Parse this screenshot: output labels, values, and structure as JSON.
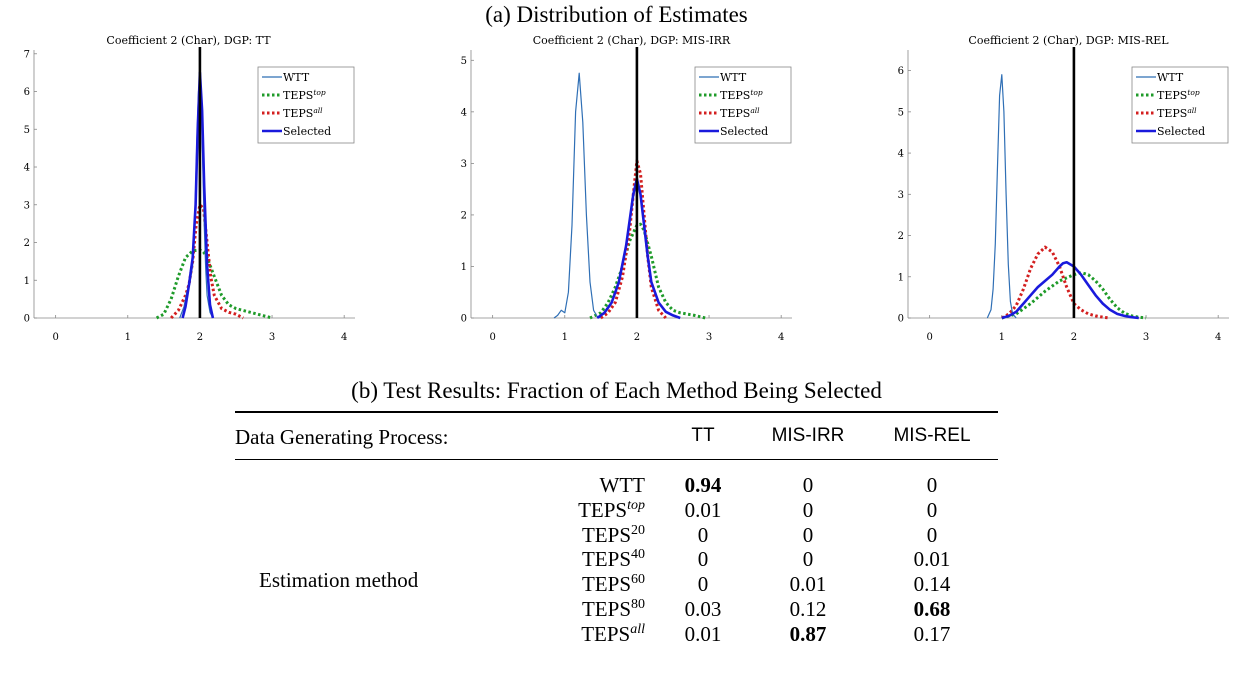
{
  "panel_a_title": "(a) Distribution of Estimates",
  "panel_b_title": "(b) Test Results: Fraction of Each Method Being Selected",
  "chart_data": [
    {
      "type": "line",
      "title": "Coefficient 2 (Char), DGP: TT",
      "xlim": [
        -0.3,
        4.15
      ],
      "ylim": [
        0,
        7.1
      ],
      "xticks": [
        0,
        1,
        2,
        3,
        4
      ],
      "yticks": [
        0,
        1,
        2,
        3,
        4,
        5,
        6,
        7
      ],
      "vline": 2,
      "legend_position": "top-right",
      "series": [
        {
          "name": "WTT",
          "color": "#2f6fb5",
          "style": "solid",
          "x": [
            1.72,
            1.78,
            1.82,
            1.86,
            1.9,
            1.93,
            1.96,
            1.98,
            2.0,
            2.02,
            2.04,
            2.06,
            2.08,
            2.1,
            2.14,
            2.18
          ],
          "y": [
            0,
            0.3,
            0.7,
            0.9,
            1.4,
            2.7,
            4.8,
            6.0,
            6.3,
            5.6,
            4.0,
            2.5,
            1.3,
            0.6,
            0.15,
            0
          ]
        },
        {
          "name": "TEPS^top",
          "color": "#1f9b2a",
          "style": "dotted",
          "x": [
            1.4,
            1.5,
            1.6,
            1.7,
            1.8,
            1.9,
            2.0,
            2.05,
            2.1,
            2.2,
            2.3,
            2.4,
            2.5,
            2.6,
            2.7,
            2.8,
            2.9,
            3.0
          ],
          "y": [
            0,
            0.1,
            0.5,
            1.1,
            1.6,
            1.78,
            1.8,
            1.75,
            1.6,
            1.1,
            0.6,
            0.35,
            0.25,
            0.2,
            0.15,
            0.1,
            0.05,
            0
          ]
        },
        {
          "name": "TEPS^all",
          "color": "#d31f1f",
          "style": "dotted",
          "x": [
            1.6,
            1.7,
            1.8,
            1.85,
            1.9,
            1.95,
            2.0,
            2.05,
            2.1,
            2.15,
            2.2,
            2.3,
            2.4,
            2.5,
            2.6
          ],
          "y": [
            0,
            0.2,
            0.6,
            0.9,
            1.5,
            2.5,
            3.0,
            2.9,
            2.0,
            1.1,
            0.6,
            0.25,
            0.15,
            0.1,
            0
          ]
        },
        {
          "name": "Selected",
          "color": "#1a1adc",
          "style": "solid",
          "x": [
            1.76,
            1.8,
            1.85,
            1.9,
            1.94,
            1.97,
            2.0,
            2.03,
            2.06,
            2.1,
            2.14,
            2.18
          ],
          "y": [
            0,
            0.3,
            0.9,
            1.6,
            3.0,
            5.0,
            6.5,
            5.5,
            3.5,
            1.4,
            0.35,
            0
          ]
        }
      ]
    },
    {
      "type": "line",
      "title": "Coefficient 2 (Char), DGP: MIS-IRR",
      "xlim": [
        -0.3,
        4.15
      ],
      "ylim": [
        0,
        5.2
      ],
      "xticks": [
        0,
        1,
        2,
        3,
        4
      ],
      "yticks": [
        0,
        1,
        2,
        3,
        4,
        5
      ],
      "vline": 2,
      "legend_position": "top-right",
      "series": [
        {
          "name": "WTT",
          "color": "#2f6fb5",
          "style": "solid",
          "x": [
            0.85,
            0.9,
            0.95,
            1.0,
            1.05,
            1.1,
            1.15,
            1.2,
            1.25,
            1.3,
            1.35,
            1.4,
            1.45,
            1.5
          ],
          "y": [
            0,
            0.05,
            0.15,
            0.1,
            0.5,
            1.8,
            4.0,
            4.75,
            3.8,
            2.0,
            0.7,
            0.15,
            0.03,
            0
          ]
        },
        {
          "name": "TEPS^top",
          "color": "#1f9b2a",
          "style": "dotted",
          "x": [
            1.35,
            1.5,
            1.6,
            1.7,
            1.8,
            1.9,
            2.0,
            2.05,
            2.1,
            2.2,
            2.3,
            2.4,
            2.5,
            2.6,
            2.8,
            2.95
          ],
          "y": [
            0,
            0.1,
            0.3,
            0.6,
            1.0,
            1.5,
            1.8,
            1.82,
            1.7,
            1.2,
            0.6,
            0.3,
            0.15,
            0.1,
            0.05,
            0
          ]
        },
        {
          "name": "TEPS^all",
          "color": "#d31f1f",
          "style": "dotted",
          "x": [
            1.5,
            1.6,
            1.7,
            1.8,
            1.9,
            1.95,
            2.0,
            2.05,
            2.1,
            2.15,
            2.2,
            2.3,
            2.4
          ],
          "y": [
            0,
            0.1,
            0.3,
            0.8,
            1.7,
            2.4,
            3.05,
            2.8,
            2.0,
            1.2,
            0.6,
            0.15,
            0
          ]
        },
        {
          "name": "Selected",
          "color": "#1a1adc",
          "style": "solid",
          "x": [
            1.45,
            1.55,
            1.65,
            1.75,
            1.85,
            1.9,
            1.95,
            2.0,
            2.05,
            2.1,
            2.15,
            2.2,
            2.3,
            2.4,
            2.5,
            2.6
          ],
          "y": [
            0,
            0.1,
            0.3,
            0.7,
            1.4,
            1.9,
            2.4,
            2.7,
            2.4,
            1.8,
            1.2,
            0.7,
            0.3,
            0.12,
            0.05,
            0
          ]
        }
      ]
    },
    {
      "type": "line",
      "title": "Coefficient 2 (Char), DGP: MIS-REL",
      "xlim": [
        -0.3,
        4.15
      ],
      "ylim": [
        0,
        6.5
      ],
      "xticks": [
        0,
        1,
        2,
        3,
        4
      ],
      "yticks": [
        0,
        1,
        2,
        3,
        4,
        5,
        6
      ],
      "vline": 2,
      "legend_position": "top-right",
      "series": [
        {
          "name": "WTT",
          "color": "#2f6fb5",
          "style": "solid",
          "x": [
            0.8,
            0.85,
            0.88,
            0.91,
            0.94,
            0.97,
            1.0,
            1.03,
            1.06,
            1.09,
            1.12,
            1.15,
            1.2
          ],
          "y": [
            0,
            0.2,
            0.7,
            1.8,
            3.6,
            5.4,
            5.9,
            5.0,
            3.0,
            1.3,
            0.4,
            0.1,
            0
          ]
        },
        {
          "name": "TEPS^top",
          "color": "#1f9b2a",
          "style": "dotted",
          "x": [
            1.0,
            1.2,
            1.4,
            1.6,
            1.8,
            2.0,
            2.1,
            2.2,
            2.3,
            2.4,
            2.5,
            2.6,
            2.7,
            2.8,
            2.9,
            3.0
          ],
          "y": [
            0,
            0.1,
            0.35,
            0.65,
            0.9,
            1.05,
            1.1,
            1.05,
            0.9,
            0.7,
            0.45,
            0.25,
            0.12,
            0.05,
            0.02,
            0
          ]
        },
        {
          "name": "TEPS^all",
          "color": "#d31f1f",
          "style": "dotted",
          "x": [
            1.0,
            1.1,
            1.2,
            1.3,
            1.4,
            1.5,
            1.6,
            1.7,
            1.8,
            1.9,
            2.0,
            2.1,
            2.2,
            2.3,
            2.4,
            2.5
          ],
          "y": [
            0,
            0.1,
            0.3,
            0.7,
            1.2,
            1.55,
            1.72,
            1.6,
            1.25,
            0.75,
            0.35,
            0.2,
            0.1,
            0.05,
            0.02,
            0
          ]
        },
        {
          "name": "Selected",
          "color": "#1a1adc",
          "style": "solid",
          "x": [
            1.0,
            1.1,
            1.2,
            1.3,
            1.4,
            1.5,
            1.6,
            1.7,
            1.8,
            1.85,
            1.9,
            2.0,
            2.1,
            2.2,
            2.3,
            2.4,
            2.5,
            2.6,
            2.7,
            2.8,
            2.9
          ],
          "y": [
            0,
            0.05,
            0.15,
            0.35,
            0.55,
            0.75,
            0.9,
            1.05,
            1.25,
            1.33,
            1.35,
            1.25,
            1.05,
            0.8,
            0.55,
            0.35,
            0.2,
            0.1,
            0.05,
            0.02,
            0
          ]
        }
      ]
    }
  ],
  "table": {
    "header_label": "Data Generating Process:",
    "columns": [
      "TT",
      "MIS-IRR",
      "MIS-REL"
    ],
    "group_label": "Estimation method",
    "rows": [
      {
        "base": "WTT",
        "sup": "",
        "values": [
          "0.94",
          "0",
          "0"
        ],
        "bold": [
          true,
          false,
          false
        ]
      },
      {
        "base": "TEPS",
        "sup": "top",
        "values": [
          "0.01",
          "0",
          "0"
        ],
        "bold": [
          false,
          false,
          false
        ]
      },
      {
        "base": "TEPS",
        "sup": "20",
        "values": [
          "0",
          "0",
          "0"
        ],
        "bold": [
          false,
          false,
          false
        ]
      },
      {
        "base": "TEPS",
        "sup": "40",
        "values": [
          "0",
          "0",
          "0.01"
        ],
        "bold": [
          false,
          false,
          false
        ]
      },
      {
        "base": "TEPS",
        "sup": "60",
        "values": [
          "0",
          "0.01",
          "0.14"
        ],
        "bold": [
          false,
          false,
          false
        ]
      },
      {
        "base": "TEPS",
        "sup": "80",
        "values": [
          "0.03",
          "0.12",
          "0.68"
        ],
        "bold": [
          false,
          false,
          true
        ]
      },
      {
        "base": "TEPS",
        "sup": "all",
        "values": [
          "0.01",
          "0.87",
          "0.17"
        ],
        "bold": [
          false,
          true,
          false
        ]
      }
    ]
  }
}
